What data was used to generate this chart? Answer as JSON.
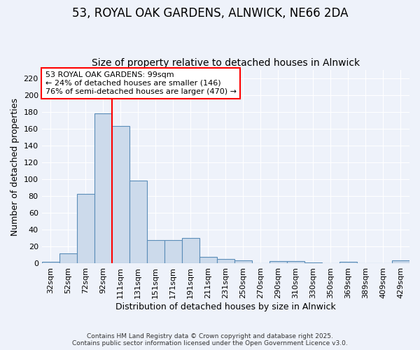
{
  "title1": "53, ROYAL OAK GARDENS, ALNWICK, NE66 2DA",
  "title2": "Size of property relative to detached houses in Alnwick",
  "xlabel": "Distribution of detached houses by size in Alnwick",
  "ylabel": "Number of detached properties",
  "categories": [
    "32sqm",
    "52sqm",
    "72sqm",
    "92sqm",
    "111sqm",
    "131sqm",
    "151sqm",
    "171sqm",
    "191sqm",
    "211sqm",
    "231sqm",
    "250sqm",
    "270sqm",
    "290sqm",
    "310sqm",
    "330sqm",
    "350sqm",
    "369sqm",
    "389sqm",
    "409sqm",
    "429sqm"
  ],
  "values": [
    2,
    12,
    83,
    178,
    163,
    98,
    28,
    28,
    30,
    8,
    5,
    4,
    0,
    3,
    3,
    1,
    0,
    2,
    0,
    0,
    4
  ],
  "bar_color": "#ccdaeb",
  "bar_edge_color": "#5b8db8",
  "red_line_x": 3.5,
  "ylim": [
    0,
    230
  ],
  "yticks": [
    0,
    20,
    40,
    60,
    80,
    100,
    120,
    140,
    160,
    180,
    200,
    220
  ],
  "annotation_line1": "53 ROYAL OAK GARDENS: 99sqm",
  "annotation_line2": "← 24% of detached houses are smaller (146)",
  "annotation_line3": "76% of semi-detached houses are larger (470) →",
  "footnote1": "Contains HM Land Registry data © Crown copyright and database right 2025.",
  "footnote2": "Contains public sector information licensed under the Open Government Licence v3.0.",
  "background_color": "#eef2fa",
  "grid_color": "#ffffff",
  "title_fontsize": 12,
  "subtitle_fontsize": 10,
  "axis_fontsize": 9,
  "tick_fontsize": 8
}
